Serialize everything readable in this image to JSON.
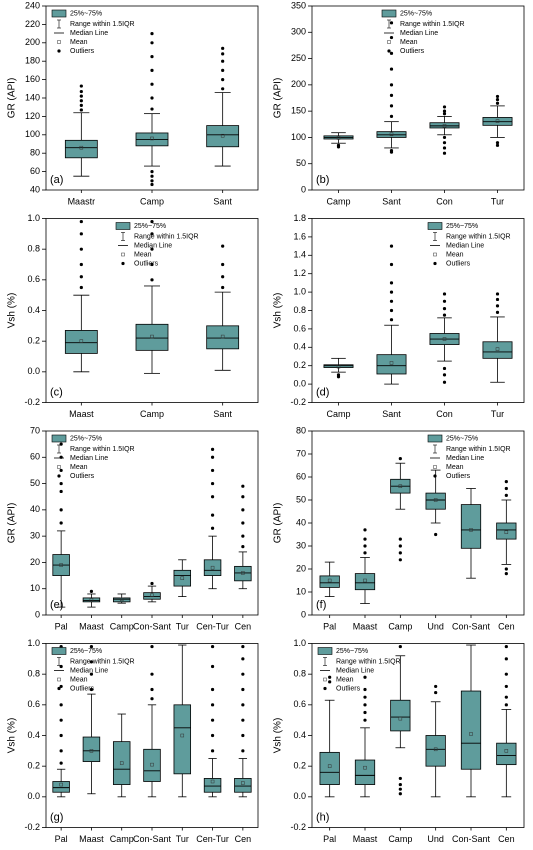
{
  "chart_data": [
    {
      "type": "box",
      "label": "(a)",
      "ylabel": "GR (API)",
      "color": "#5f9c9c",
      "legend_position": "upper left",
      "legend": [
        "25%~75%",
        "Range within 1.5IQR",
        "Median Line",
        "Mean",
        "Outliers"
      ],
      "categories": [
        "Maastr",
        "Camp",
        "Sant"
      ],
      "ylim": [
        40,
        240
      ],
      "yticks": [
        40,
        60,
        80,
        100,
        120,
        140,
        160,
        180,
        200,
        220,
        240
      ],
      "boxes": [
        {
          "q1": 75,
          "median": 86,
          "q3": 94,
          "whisker_low": 55,
          "whisker_high": 124,
          "mean": 86,
          "outliers": [
            127,
            132,
            137,
            142,
            147,
            153
          ]
        },
        {
          "q1": 88,
          "median": 95,
          "q3": 102,
          "whisker_low": 66,
          "whisker_high": 123,
          "mean": 96,
          "outliers": [
            46,
            50,
            55,
            60,
            128,
            140,
            155,
            170,
            185,
            200,
            210
          ]
        },
        {
          "q1": 87,
          "median": 100,
          "q3": 110,
          "whisker_low": 66,
          "whisker_high": 146,
          "mean": 99,
          "outliers": [
            150,
            160,
            170,
            180,
            188,
            194
          ]
        }
      ]
    },
    {
      "type": "box",
      "label": "(b)",
      "ylabel": "GR (API)",
      "color": "#5f9c9c",
      "legend_position": "upper center",
      "legend": [
        "25%~75%",
        "Range within 1.5IQR",
        "Median Line",
        "Mean",
        "Outliers"
      ],
      "categories": [
        "Camp",
        "Sant",
        "Con",
        "Tur"
      ],
      "ylim": [
        0,
        350
      ],
      "yticks": [
        0,
        50,
        100,
        150,
        200,
        250,
        300,
        350
      ],
      "boxes": [
        {
          "q1": 97,
          "median": 100,
          "q3": 103,
          "whisker_low": 89,
          "whisker_high": 109,
          "mean": 99,
          "outliers": [
            82,
            85
          ]
        },
        {
          "q1": 100,
          "median": 105,
          "q3": 111,
          "whisker_low": 80,
          "whisker_high": 130,
          "mean": 106,
          "outliers": [
            72,
            75,
            140,
            160,
            180,
            200,
            230,
            260,
            290,
            318
          ]
        },
        {
          "q1": 118,
          "median": 122,
          "q3": 128,
          "whisker_low": 105,
          "whisker_high": 140,
          "mean": 122,
          "outliers": [
            70,
            80,
            90,
            100,
            145,
            150,
            158
          ]
        },
        {
          "q1": 123,
          "median": 130,
          "q3": 138,
          "whisker_low": 100,
          "whisker_high": 160,
          "mean": 131,
          "outliers": [
            85,
            90,
            165,
            172,
            178
          ]
        }
      ]
    },
    {
      "type": "box",
      "label": "(c)",
      "ylabel": "Vsh (%)",
      "color": "#5f9c9c",
      "legend_position": "upper center",
      "legend": [
        "25%~75%",
        "Range within 1.5IQR",
        "Median Line",
        "Mean",
        "Outliers"
      ],
      "categories": [
        "Maast",
        "Camp",
        "Sant"
      ],
      "ylim": [
        -0.2,
        1.0
      ],
      "yticks": [
        -0.2,
        {
          "value": 0,
          "label": "0.0"
        },
        0.2,
        0.4,
        0.6,
        0.8,
        {
          "value": 1,
          "label": "1.0"
        }
      ],
      "boxes": [
        {
          "q1": 0.12,
          "median": 0.19,
          "q3": 0.27,
          "whisker_low": 0,
          "whisker_high": 0.5,
          "mean": 0.2,
          "outliers": [
            0.55,
            0.62,
            0.7,
            0.8,
            0.9,
            0.98
          ]
        },
        {
          "q1": 0.14,
          "median": 0.22,
          "q3": 0.31,
          "whisker_low": -0.01,
          "whisker_high": 0.56,
          "mean": 0.23,
          "outliers": [
            0.6,
            0.7,
            0.8,
            0.9,
            0.98
          ]
        },
        {
          "q1": 0.15,
          "median": 0.22,
          "q3": 0.3,
          "whisker_low": 0.01,
          "whisker_high": 0.52,
          "mean": 0.23,
          "outliers": [
            0.55,
            0.62,
            0.7,
            0.82
          ]
        }
      ]
    },
    {
      "type": "box",
      "label": "(d)",
      "ylabel": "Vsh (%)",
      "color": "#5f9c9c",
      "legend_position": "upper right",
      "legend": [
        "25%~75%",
        "Range within 1.5IQR",
        "Median Line",
        "Mean",
        "Outliers"
      ],
      "categories": [
        "Camp",
        "Sant",
        "Con",
        "Tur"
      ],
      "ylim": [
        -0.2,
        1.8
      ],
      "yticks": [
        -0.2,
        {
          "value": 0,
          "label": "0.0"
        },
        0.2,
        0.4,
        0.6,
        0.8,
        {
          "value": 1,
          "label": "1.0"
        },
        1.2,
        1.4,
        1.6,
        1.8
      ],
      "boxes": [
        {
          "q1": 0.18,
          "median": 0.2,
          "q3": 0.21,
          "whisker_low": 0.13,
          "whisker_high": 0.28,
          "mean": 0.19,
          "outliers": [
            0.08,
            0.1
          ]
        },
        {
          "q1": 0.11,
          "median": 0.2,
          "q3": 0.32,
          "whisker_low": 0,
          "whisker_high": 0.64,
          "mean": 0.23,
          "outliers": [
            0.7,
            0.8,
            0.9,
            1.0,
            1.1,
            1.3,
            1.5
          ]
        },
        {
          "q1": 0.43,
          "median": 0.49,
          "q3": 0.55,
          "whisker_low": 0.25,
          "whisker_high": 0.72,
          "mean": 0.49,
          "outliers": [
            0.02,
            0.1,
            0.17,
            0.75,
            0.82,
            0.9,
            0.98
          ]
        },
        {
          "q1": 0.28,
          "median": 0.35,
          "q3": 0.46,
          "whisker_low": 0.02,
          "whisker_high": 0.73,
          "mean": 0.38,
          "outliers": [
            0.78,
            0.85,
            0.92,
            0.98
          ]
        }
      ]
    },
    {
      "type": "box",
      "label": "(e)",
      "ylabel": "GR (API)",
      "color": "#5f9c9c",
      "legend_position": "upper left",
      "legend": [
        "25%~75%",
        "Range within 1.5IQR",
        "Median Line",
        "Mean",
        "Outliers"
      ],
      "categories": [
        "Pal",
        "Maast",
        "Camp",
        "Con-Sant",
        "Tur",
        "Cen-Tur",
        "Cen"
      ],
      "ylim": [
        0,
        70
      ],
      "yticks": [
        0,
        10,
        20,
        30,
        40,
        50,
        60,
        70
      ],
      "boxes": [
        {
          "q1": 15,
          "median": 19,
          "q3": 23,
          "whisker_low": 3,
          "whisker_high": 32,
          "mean": 19,
          "outliers": [
            35,
            40,
            47,
            50,
            55,
            60,
            65
          ]
        },
        {
          "q1": 5,
          "median": 5.5,
          "q3": 6.5,
          "whisker_low": 3,
          "whisker_high": 8,
          "mean": 5.7,
          "outliers": [
            9
          ]
        },
        {
          "q1": 5,
          "median": 6,
          "q3": 6.5,
          "whisker_low": 4.5,
          "whisker_high": 8,
          "mean": 6,
          "outliers": []
        },
        {
          "q1": 6,
          "median": 7,
          "q3": 8.5,
          "whisker_low": 5,
          "whisker_high": 11,
          "mean": 7.5,
          "outliers": [
            12
          ]
        },
        {
          "q1": 11,
          "median": 15,
          "q3": 17,
          "whisker_low": 7,
          "whisker_high": 21,
          "mean": 14,
          "outliers": []
        },
        {
          "q1": 15,
          "median": 17,
          "q3": 21,
          "whisker_low": 10,
          "whisker_high": 30,
          "mean": 18,
          "outliers": [
            33,
            38,
            45,
            50,
            55,
            60,
            63
          ]
        },
        {
          "q1": 13,
          "median": 16,
          "q3": 18.5,
          "whisker_low": 10,
          "whisker_high": 24,
          "mean": 16,
          "outliers": [
            26,
            30,
            35,
            40,
            45,
            49
          ]
        }
      ]
    },
    {
      "type": "box",
      "label": "(f)",
      "ylabel": "GR (API)",
      "color": "#5f9c9c",
      "legend_position": "upper right",
      "legend": [
        "25%~75%",
        "Range within 1.5IQR",
        "Median Line",
        "Mean",
        "Outliers"
      ],
      "categories": [
        "Pal",
        "Maast",
        "Camp",
        "Und",
        "Con-Sant",
        "Cen"
      ],
      "ylim": [
        0,
        80
      ],
      "yticks": [
        0,
        10,
        20,
        30,
        40,
        50,
        60,
        70,
        80
      ],
      "boxes": [
        {
          "q1": 12,
          "median": 14,
          "q3": 17,
          "whisker_low": 8,
          "whisker_high": 23,
          "mean": 15,
          "outliers": []
        },
        {
          "q1": 11,
          "median": 14,
          "q3": 18,
          "whisker_low": 5,
          "whisker_high": 25,
          "mean": 15,
          "outliers": [
            27,
            30,
            33,
            37
          ]
        },
        {
          "q1": 53,
          "median": 56,
          "q3": 59,
          "whisker_low": 46,
          "whisker_high": 66,
          "mean": 56,
          "outliers": [
            24,
            27,
            30,
            33,
            68
          ]
        },
        {
          "q1": 46,
          "median": 50,
          "q3": 53,
          "whisker_low": 40,
          "whisker_high": 63,
          "mean": 50,
          "outliers": [
            35
          ]
        },
        {
          "q1": 29,
          "median": 37,
          "q3": 48,
          "whisker_low": 16,
          "whisker_high": 55,
          "mean": 37,
          "outliers": []
        },
        {
          "q1": 33,
          "median": 37,
          "q3": 40,
          "whisker_low": 22,
          "whisker_high": 50,
          "mean": 36,
          "outliers": [
            18,
            20,
            52,
            55,
            58
          ]
        }
      ]
    },
    {
      "type": "box",
      "label": "(g)",
      "ylabel": "Vsh (%)",
      "color": "#5f9c9c",
      "legend_position": "upper left",
      "legend": [
        "25%~75%",
        "Range within 1.5IQR",
        "Median Line",
        "Mean",
        "Outliers"
      ],
      "categories": [
        "Pal",
        "Maast",
        "Camp",
        "Con-Sant",
        "Tur",
        "Cen-Tur",
        "Cen"
      ],
      "ylim": [
        -0.2,
        1.0
      ],
      "yticks": [
        -0.2,
        {
          "value": 0,
          "label": "0.0"
        },
        0.2,
        0.4,
        0.6,
        0.8,
        {
          "value": 1,
          "label": "1.0"
        }
      ],
      "boxes": [
        {
          "q1": 0.03,
          "median": 0.06,
          "q3": 0.1,
          "whisker_low": 0,
          "whisker_high": 0.18,
          "mean": 0.08,
          "outliers": [
            0.22,
            0.3,
            0.4,
            0.5,
            0.6,
            0.72,
            0.85,
            0.98
          ]
        },
        {
          "q1": 0.23,
          "median": 0.3,
          "q3": 0.39,
          "whisker_low": 0.02,
          "whisker_high": 0.67,
          "mean": 0.3,
          "outliers": [
            0.7,
            0.8,
            0.88,
            0.98
          ]
        },
        {
          "q1": 0.08,
          "median": 0.18,
          "q3": 0.36,
          "whisker_low": 0,
          "whisker_high": 0.54,
          "mean": 0.22,
          "outliers": []
        },
        {
          "q1": 0.1,
          "median": 0.17,
          "q3": 0.31,
          "whisker_low": 0,
          "whisker_high": 0.6,
          "mean": 0.21,
          "outliers": [
            0.64,
            0.7,
            0.8,
            0.98
          ]
        },
        {
          "q1": 0.15,
          "median": 0.45,
          "q3": 0.6,
          "whisker_low": 0,
          "whisker_high": 0.99,
          "mean": 0.4,
          "outliers": []
        },
        {
          "q1": 0.03,
          "median": 0.07,
          "q3": 0.12,
          "whisker_low": 0,
          "whisker_high": 0.25,
          "mean": 0.1,
          "outliers": [
            0.3,
            0.4,
            0.5,
            0.6,
            0.7,
            0.85,
            0.98
          ]
        },
        {
          "q1": 0.03,
          "median": 0.07,
          "q3": 0.12,
          "whisker_low": 0,
          "whisker_high": 0.25,
          "mean": 0.09,
          "outliers": [
            0.3,
            0.4,
            0.5,
            0.6,
            0.7,
            0.8,
            0.9,
            0.98
          ]
        }
      ]
    },
    {
      "type": "box",
      "label": "(h)",
      "ylabel": "Vsh (%)",
      "color": "#5f9c9c",
      "legend_position": "upper left",
      "legend": [
        "25%~75%",
        "Range within 1.5IQR",
        "Median Line",
        "Mean",
        "Outliers"
      ],
      "categories": [
        "Pal",
        "Maast",
        "Camp",
        "Und",
        "Con-Sant",
        "Cen"
      ],
      "ylim": [
        -0.2,
        1.0
      ],
      "yticks": [
        -0.2,
        {
          "value": 0,
          "label": "0.0"
        },
        0.2,
        0.4,
        0.6,
        0.8,
        {
          "value": 1,
          "label": "1.0"
        }
      ],
      "boxes": [
        {
          "q1": 0.08,
          "median": 0.16,
          "q3": 0.29,
          "whisker_low": 0,
          "whisker_high": 0.63,
          "mean": 0.2,
          "outliers": [
            0.75,
            0.78
          ]
        },
        {
          "q1": 0.08,
          "median": 0.14,
          "q3": 0.24,
          "whisker_low": 0,
          "whisker_high": 0.45,
          "mean": 0.19,
          "outliers": [
            0.5,
            0.55,
            0.6,
            0.65,
            0.7,
            0.78
          ]
        },
        {
          "q1": 0.43,
          "median": 0.52,
          "q3": 0.63,
          "whisker_low": 0.32,
          "whisker_high": 0.92,
          "mean": 0.51,
          "outliers": [
            0.02,
            0.05,
            0.08,
            0.12,
            0.98
          ]
        },
        {
          "q1": 0.2,
          "median": 0.31,
          "q3": 0.4,
          "whisker_low": 0,
          "whisker_high": 0.62,
          "mean": 0.31,
          "outliers": [
            0.68,
            0.72
          ]
        },
        {
          "q1": 0.18,
          "median": 0.35,
          "q3": 0.69,
          "whisker_low": 0,
          "whisker_high": 0.99,
          "mean": 0.41,
          "outliers": []
        },
        {
          "q1": 0.21,
          "median": 0.27,
          "q3": 0.35,
          "whisker_low": 0,
          "whisker_high": 0.57,
          "mean": 0.3,
          "outliers": [
            0.6,
            0.65,
            0.72,
            0.8,
            0.9,
            0.98
          ]
        }
      ]
    }
  ]
}
